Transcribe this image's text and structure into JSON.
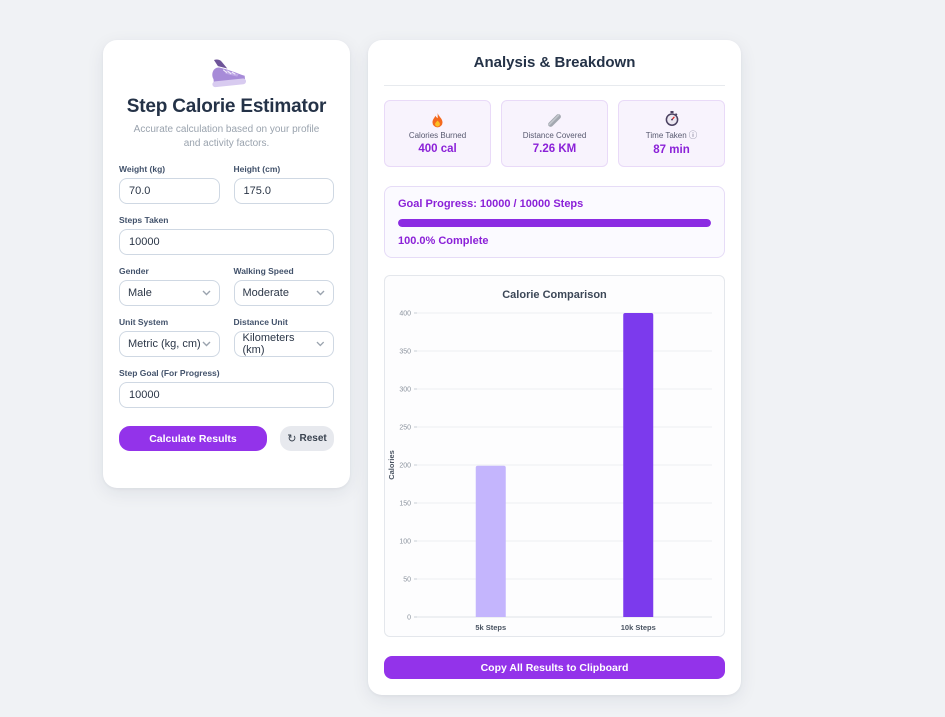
{
  "colors": {
    "primary_purple": "#9333ea",
    "accent_purple": "#8b21d8",
    "progress_purple": "#8b2be2",
    "bar_light": "#c4b5fd",
    "bar_dark": "#7c3aed",
    "title_navy": "#243247"
  },
  "icons": {
    "reset": "↻",
    "info": "ⓘ"
  },
  "estimator": {
    "title": "Step Calorie Estimator",
    "subtitle": "Accurate calculation based on your profile and activity factors.",
    "fields": {
      "weight": {
        "label": "Weight (kg)",
        "value": "70.0"
      },
      "height": {
        "label": "Height (cm)",
        "value": "175.0"
      },
      "steps": {
        "label": "Steps Taken",
        "value": "10000"
      },
      "gender": {
        "label": "Gender",
        "value": "Male"
      },
      "walking_speed": {
        "label": "Walking Speed",
        "value": "Moderate"
      },
      "unit_system": {
        "label": "Unit System",
        "value": "Metric (kg, cm)"
      },
      "distance_unit": {
        "label": "Distance Unit",
        "value": "Kilometers (km)"
      },
      "step_goal": {
        "label": "Step Goal (For Progress)",
        "value": "10000"
      }
    },
    "buttons": {
      "calculate": "Calculate Results",
      "reset": "Reset"
    }
  },
  "analysis": {
    "title": "Analysis & Breakdown",
    "stats": [
      {
        "icon": "flame-icon",
        "label": "Calories Burned",
        "value": "400 cal"
      },
      {
        "icon": "ruler-icon",
        "label": "Distance Covered",
        "value": "7.26 KM"
      },
      {
        "icon": "stopwatch-icon",
        "label": "Time Taken",
        "value": "87 min"
      }
    ],
    "goal": {
      "text": "Goal Progress: 10000 / 10000 Steps",
      "percent": 100.0,
      "complete_text": "100.0% Complete"
    },
    "copy_button": "Copy All Results to Clipboard"
  },
  "chart_data": {
    "type": "bar",
    "title": "Calorie Comparison",
    "categories": [
      "5k Steps",
      "10k Steps"
    ],
    "values": [
      199,
      400
    ],
    "bar_colors": [
      "#c4b5fd",
      "#7c3aed"
    ],
    "xlabel": "",
    "ylabel": "Calories",
    "ylim": [
      0,
      400
    ],
    "yticks": [
      0,
      50,
      100,
      150,
      200,
      250,
      300,
      350,
      400
    ],
    "grid": true,
    "legend": false
  }
}
